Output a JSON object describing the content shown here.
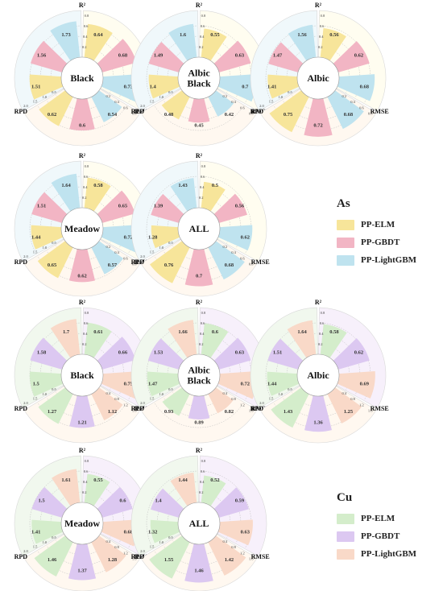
{
  "chart_data": [
    {
      "type": "polar-bar",
      "element": "As",
      "title": "Black",
      "axis_labels": [
        "R²",
        "RMSE",
        "RPD"
      ],
      "series": [
        {
          "name": "PP-ELM",
          "r2": 0.64,
          "rmse": 0.62,
          "rpd": 1.51
        },
        {
          "name": "PP-GBDT",
          "r2": 0.68,
          "rmse": 0.6,
          "rpd": 1.56
        },
        {
          "name": "PP-LightGBM",
          "r2": 0.73,
          "rmse": 0.54,
          "rpd": 1.73
        }
      ]
    },
    {
      "type": "polar-bar",
      "element": "As",
      "title": "Albic Black",
      "axis_labels": [
        "R²",
        "RMSE",
        "RPD"
      ],
      "series": [
        {
          "name": "PP-ELM",
          "r2": 0.55,
          "rmse": 0.48,
          "rpd": 1.4
        },
        {
          "name": "PP-GBDT",
          "r2": 0.63,
          "rmse": 0.45,
          "rpd": 1.49
        },
        {
          "name": "PP-LightGBM",
          "r2": 0.7,
          "rmse": 0.42,
          "rpd": 1.6
        }
      ]
    },
    {
      "type": "polar-bar",
      "element": "As",
      "title": "Albic",
      "axis_labels": [
        "R²",
        "RMSE",
        "RPD"
      ],
      "series": [
        {
          "name": "PP-ELM",
          "r2": 0.56,
          "rmse": 0.75,
          "rpd": 1.41
        },
        {
          "name": "PP-GBDT",
          "r2": 0.62,
          "rmse": 0.72,
          "rpd": 1.47
        },
        {
          "name": "PP-LightGBM",
          "r2": 0.68,
          "rmse": 0.68,
          "rpd": 1.56
        }
      ]
    },
    {
      "type": "polar-bar",
      "element": "As",
      "title": "Meadow",
      "axis_labels": [
        "R²",
        "RMSE",
        "RPD"
      ],
      "series": [
        {
          "name": "PP-ELM",
          "r2": 0.58,
          "rmse": 0.65,
          "rpd": 1.44
        },
        {
          "name": "PP-GBDT",
          "r2": 0.65,
          "rmse": 0.62,
          "rpd": 1.51
        },
        {
          "name": "PP-LightGBM",
          "r2": 0.72,
          "rmse": 0.57,
          "rpd": 1.64
        }
      ]
    },
    {
      "type": "polar-bar",
      "element": "As",
      "title": "ALL",
      "axis_labels": [
        "R²",
        "RMSE",
        "RPD"
      ],
      "series": [
        {
          "name": "PP-ELM",
          "r2": 0.5,
          "rmse": 0.76,
          "rpd": 1.28
        },
        {
          "name": "PP-GBDT",
          "r2": 0.56,
          "rmse": 0.7,
          "rpd": 1.39
        },
        {
          "name": "PP-LightGBM",
          "r2": 0.62,
          "rmse": 0.68,
          "rpd": 1.43
        }
      ]
    },
    {
      "type": "polar-bar",
      "element": "Cu",
      "title": "Black",
      "axis_labels": [
        "R²",
        "RMSE",
        "RPD"
      ],
      "series": [
        {
          "name": "PP-ELM",
          "r2": 0.61,
          "rmse": 1.27,
          "rpd": 1.5
        },
        {
          "name": "PP-GBDT",
          "r2": 0.66,
          "rmse": 1.21,
          "rpd": 1.58
        },
        {
          "name": "PP-LightGBM",
          "r2": 0.75,
          "rmse": 1.12,
          "rpd": 1.7
        }
      ]
    },
    {
      "type": "polar-bar",
      "element": "Cu",
      "title": "Albic Black",
      "axis_labels": [
        "R²",
        "RMSE",
        "RPD"
      ],
      "series": [
        {
          "name": "PP-ELM",
          "r2": 0.6,
          "rmse": 0.93,
          "rpd": 1.47
        },
        {
          "name": "PP-GBDT",
          "r2": 0.63,
          "rmse": 0.89,
          "rpd": 1.53
        },
        {
          "name": "PP-LightGBM",
          "r2": 0.72,
          "rmse": 0.82,
          "rpd": 1.66
        }
      ]
    },
    {
      "type": "polar-bar",
      "element": "Cu",
      "title": "Albic",
      "axis_labels": [
        "R²",
        "RMSE",
        "RPD"
      ],
      "series": [
        {
          "name": "PP-ELM",
          "r2": 0.58,
          "rmse": 1.43,
          "rpd": 1.44
        },
        {
          "name": "PP-GBDT",
          "r2": 0.62,
          "rmse": 1.36,
          "rpd": 1.51
        },
        {
          "name": "PP-LightGBM",
          "r2": 0.69,
          "rmse": 1.25,
          "rpd": 1.64
        }
      ]
    },
    {
      "type": "polar-bar",
      "element": "Cu",
      "title": "Meadow",
      "axis_labels": [
        "R²",
        "RMSE",
        "RPD"
      ],
      "series": [
        {
          "name": "PP-ELM",
          "r2": 0.55,
          "rmse": 1.46,
          "rpd": 1.41
        },
        {
          "name": "PP-GBDT",
          "r2": 0.6,
          "rmse": 1.37,
          "rpd": 1.5
        },
        {
          "name": "PP-LightGBM",
          "r2": 0.68,
          "rmse": 1.28,
          "rpd": 1.61
        }
      ]
    },
    {
      "type": "polar-bar",
      "element": "Cu",
      "title": "ALL",
      "axis_labels": [
        "R²",
        "RMSE",
        "RPD"
      ],
      "series": [
        {
          "name": "PP-ELM",
          "r2": 0.52,
          "rmse": 1.55,
          "rpd": 1.32
        },
        {
          "name": "PP-GBDT",
          "r2": 0.59,
          "rmse": 1.46,
          "rpd": 1.4
        },
        {
          "name": "PP-LightGBM",
          "r2": 0.63,
          "rmse": 1.42,
          "rpd": 1.44
        }
      ]
    }
  ],
  "scales": {
    "As": {
      "r2": {
        "max": 0.8,
        "ticks": [
          "0.2",
          "0.4",
          "0.6",
          "0.8"
        ]
      },
      "rmse": {
        "max": 0.8,
        "ticks": [
          "0.2",
          "0.4",
          "0.6",
          "0.8"
        ]
      },
      "rpd": {
        "max": 2.0,
        "ticks": [
          "0.5",
          "1.0",
          "1.5",
          "2.0"
        ]
      }
    },
    "Cu": {
      "r2": {
        "max": 0.8,
        "ticks": [
          "0.2",
          "0.4",
          "0.6",
          "0.8"
        ]
      },
      "rmse": {
        "max": 1.6,
        "ticks": [
          "0.4",
          "0.8",
          "1.2",
          "1.6"
        ]
      },
      "rpd": {
        "max": 2.0,
        "ticks": [
          "0.5",
          "1.0",
          "1.5",
          "2.0"
        ]
      }
    }
  },
  "legends": [
    {
      "title": "As",
      "items": [
        {
          "label": "PP-ELM",
          "color": "#F7E59A"
        },
        {
          "label": "PP-GBDT",
          "color": "#F2B5C4"
        },
        {
          "label": "PP-LightGBM",
          "color": "#BFE3EF"
        }
      ]
    },
    {
      "title": "Cu",
      "items": [
        {
          "label": "PP-ELM",
          "color": "#D4EDCB"
        },
        {
          "label": "PP-GBDT",
          "color": "#DCC8F1"
        },
        {
          "label": "PP-LightGBM",
          "color": "#F9D9C8"
        }
      ]
    }
  ],
  "sector_backgrounds": {
    "As": {
      "r2": "#FFFDF0",
      "rmse": "#FFF8F0",
      "rpd": "#F0F8FB"
    },
    "Cu": {
      "r2": "#F7F0FB",
      "rmse": "#FFF8F0",
      "rpd": "#F1F8EE"
    }
  }
}
